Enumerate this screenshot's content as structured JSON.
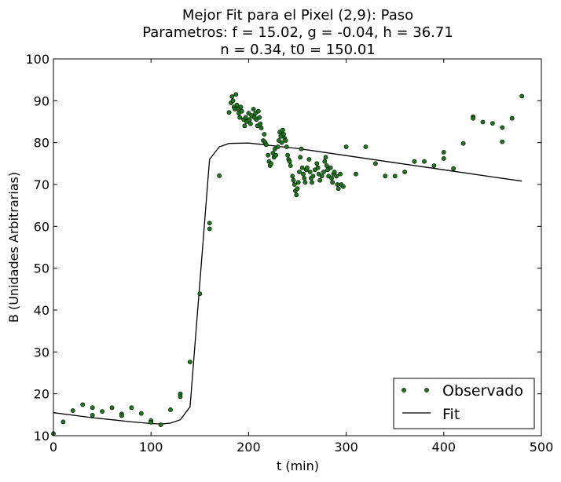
{
  "chart_data": {
    "type": "scatter",
    "title_lines": [
      "Mejor Fit para el Pixel (2,9): Paso",
      "Parametros: f = 15.02, g = -0.04, h = 36.71",
      "n = 0.34, t0 = 150.01"
    ],
    "xlabel": "t (min)",
    "ylabel": "B (Unidades Arbitrarias)",
    "xlim": [
      0,
      500
    ],
    "ylim": [
      10,
      100
    ],
    "xticks": [
      0,
      100,
      200,
      300,
      400,
      500
    ],
    "yticks": [
      10,
      20,
      30,
      40,
      50,
      60,
      70,
      80,
      90,
      100
    ],
    "grid": false,
    "legend_position": "lower-right",
    "colors": {
      "observed": "#1a7a1a",
      "fit": "#000000"
    },
    "series": [
      {
        "name": "Observado",
        "kind": "scatter",
        "points": [
          [
            0,
            10.5
          ],
          [
            10,
            13.3
          ],
          [
            20,
            16.0
          ],
          [
            30,
            17.4
          ],
          [
            40,
            16.7
          ],
          [
            40,
            14.9
          ],
          [
            50,
            15.8
          ],
          [
            60,
            16.7
          ],
          [
            70,
            15.2
          ],
          [
            70,
            14.8
          ],
          [
            80,
            16.7
          ],
          [
            90,
            15.3
          ],
          [
            100,
            13.6
          ],
          [
            100,
            13.2
          ],
          [
            110,
            12.6
          ],
          [
            120,
            16.2
          ],
          [
            130,
            20.0
          ],
          [
            130,
            19.3
          ],
          [
            140,
            27.6
          ],
          [
            150,
            43.9
          ],
          [
            160,
            60.8
          ],
          [
            160,
            59.4
          ],
          [
            170,
            72.1
          ],
          [
            180,
            87.2
          ],
          [
            182,
            89.5
          ],
          [
            183,
            91.0
          ],
          [
            184,
            90.0
          ],
          [
            185,
            88.5
          ],
          [
            186,
            88.0
          ],
          [
            187,
            91.5
          ],
          [
            188,
            89.0
          ],
          [
            189,
            88.0
          ],
          [
            190,
            87.0
          ],
          [
            191,
            86.0
          ],
          [
            192,
            88.5
          ],
          [
            193,
            87.5
          ],
          [
            195,
            85.5
          ],
          [
            196,
            84.0
          ],
          [
            197,
            86.0
          ],
          [
            198,
            85.0
          ],
          [
            200,
            87.0
          ],
          [
            201,
            85.5
          ],
          [
            202,
            84.5
          ],
          [
            203,
            86.5
          ],
          [
            205,
            88.0
          ],
          [
            206,
            86.0
          ],
          [
            207,
            87.0
          ],
          [
            208,
            85.5
          ],
          [
            209,
            84.0
          ],
          [
            210,
            87.5
          ],
          [
            211,
            86.0
          ],
          [
            212,
            84.5
          ],
          [
            213,
            83.5
          ],
          [
            215,
            80.5
          ],
          [
            216,
            82.0
          ],
          [
            217,
            80.0
          ],
          [
            218,
            79.5
          ],
          [
            220,
            77.0
          ],
          [
            221,
            75.5
          ],
          [
            222,
            74.5
          ],
          [
            223,
            75.0
          ],
          [
            225,
            77.5
          ],
          [
            226,
            76.5
          ],
          [
            227,
            78.5
          ],
          [
            228,
            77.0
          ],
          [
            230,
            79.0
          ],
          [
            231,
            80.5
          ],
          [
            232,
            82.5
          ],
          [
            233,
            81.5
          ],
          [
            234,
            80.0
          ],
          [
            235,
            83.0
          ],
          [
            236,
            82.0
          ],
          [
            237,
            81.0
          ],
          [
            238,
            80.5
          ],
          [
            239,
            79.0
          ],
          [
            240,
            77.0
          ],
          [
            241,
            76.0
          ],
          [
            242,
            75.5
          ],
          [
            243,
            74.5
          ],
          [
            245,
            72.0
          ],
          [
            246,
            71.0
          ],
          [
            247,
            70.0
          ],
          [
            248,
            68.5
          ],
          [
            249,
            67.5
          ],
          [
            250,
            69.0
          ],
          [
            251,
            70.5
          ],
          [
            252,
            73.0
          ],
          [
            253,
            76.5
          ],
          [
            254,
            78.5
          ],
          [
            255,
            74.0
          ],
          [
            256,
            72.5
          ],
          [
            257,
            71.5
          ],
          [
            258,
            70.5
          ],
          [
            259,
            73.5
          ],
          [
            260,
            74.0
          ],
          [
            262,
            76.0
          ],
          [
            263,
            73.0
          ],
          [
            264,
            71.5
          ],
          [
            265,
            70.5
          ],
          [
            266,
            72.0
          ],
          [
            268,
            73.5
          ],
          [
            270,
            75.0
          ],
          [
            271,
            74.0
          ],
          [
            272,
            72.5
          ],
          [
            273,
            71.0
          ],
          [
            275,
            72.0
          ],
          [
            277,
            73.0
          ],
          [
            278,
            75.5
          ],
          [
            279,
            76.5
          ],
          [
            280,
            74.5
          ],
          [
            281,
            73.5
          ],
          [
            282,
            72.0
          ],
          [
            284,
            74.0
          ],
          [
            285,
            71.5
          ],
          [
            286,
            70.5
          ],
          [
            287,
            72.5
          ],
          [
            288,
            73.0
          ],
          [
            290,
            72.0
          ],
          [
            291,
            70.0
          ],
          [
            292,
            69.0
          ],
          [
            294,
            72.5
          ],
          [
            295,
            70.0
          ],
          [
            297,
            69.5
          ],
          [
            300,
            79.0
          ],
          [
            310,
            72.5
          ],
          [
            320,
            79.0
          ],
          [
            330,
            75.0
          ],
          [
            340,
            72.0
          ],
          [
            350,
            72.0
          ],
          [
            360,
            73.0
          ],
          [
            370,
            75.5
          ],
          [
            380,
            75.5
          ],
          [
            390,
            74.5
          ],
          [
            400,
            77.7
          ],
          [
            400,
            76.2
          ],
          [
            410,
            73.8
          ],
          [
            420,
            79.8
          ],
          [
            430,
            86.2
          ],
          [
            430,
            85.8
          ],
          [
            440,
            84.9
          ],
          [
            450,
            84.6
          ],
          [
            460,
            80.2
          ],
          [
            460,
            83.6
          ],
          [
            470,
            85.8
          ],
          [
            480,
            91.1
          ]
        ]
      },
      {
        "name": "Fit",
        "kind": "line",
        "points": [
          [
            0,
            15.5
          ],
          [
            20,
            14.9
          ],
          [
            40,
            14.3
          ],
          [
            60,
            13.8
          ],
          [
            80,
            13.3
          ],
          [
            100,
            12.9
          ],
          [
            110,
            12.8
          ],
          [
            120,
            13.0
          ],
          [
            130,
            13.8
          ],
          [
            140,
            16.9
          ],
          [
            160,
            76.0
          ],
          [
            170,
            79.0
          ],
          [
            180,
            79.8
          ],
          [
            200,
            79.9
          ],
          [
            250,
            78.6
          ],
          [
            300,
            76.9
          ],
          [
            350,
            75.2
          ],
          [
            400,
            73.5
          ],
          [
            450,
            71.8
          ],
          [
            480,
            70.8
          ]
        ]
      }
    ]
  }
}
